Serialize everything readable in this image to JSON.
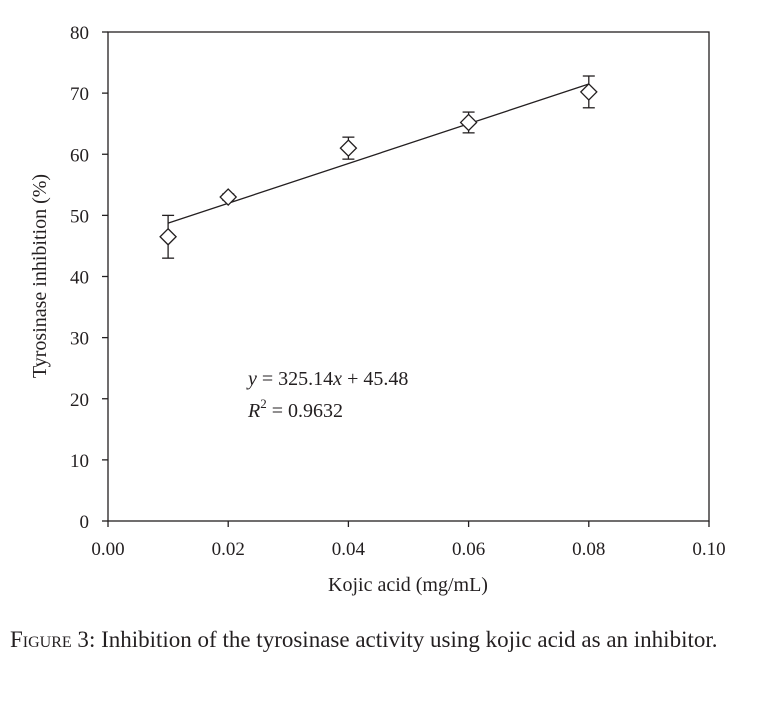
{
  "chart_data": {
    "type": "scatter",
    "xlabel": "Kojic acid (mg/mL)",
    "ylabel": "Tyrosinase inhibition (%)",
    "xlim": [
      0,
      0.1
    ],
    "ylim": [
      0,
      80
    ],
    "x_ticks": [
      "0.00",
      "0.02",
      "0.04",
      "0.06",
      "0.08",
      "0.10"
    ],
    "y_ticks": [
      "0",
      "10",
      "20",
      "30",
      "40",
      "50",
      "60",
      "70",
      "80"
    ],
    "grid": false,
    "marker": "diamond-open",
    "points": [
      {
        "x": 0.01,
        "y": 46.5,
        "err": 3.5
      },
      {
        "x": 0.02,
        "y": 53.0,
        "err": 0.5
      },
      {
        "x": 0.04,
        "y": 61.0,
        "err": 1.8
      },
      {
        "x": 0.06,
        "y": 65.2,
        "err": 1.7
      },
      {
        "x": 0.08,
        "y": 70.2,
        "err": 2.6
      }
    ],
    "fit": {
      "slope": 325.14,
      "intercept": 45.48,
      "x_range": [
        0.01,
        0.08
      ]
    },
    "annotation": {
      "y_symbol": "y",
      "equation_rest": " = 325.14",
      "x_symbol": "x",
      "equation_tail": " + 45.48",
      "r_symbol": "R",
      "r_power": "2",
      "r_value": " = 0.9632"
    }
  },
  "caption": {
    "label": "Figure 3",
    "text": ": Inhibition of the tyrosinase activity using kojic acid as an inhibitor."
  }
}
